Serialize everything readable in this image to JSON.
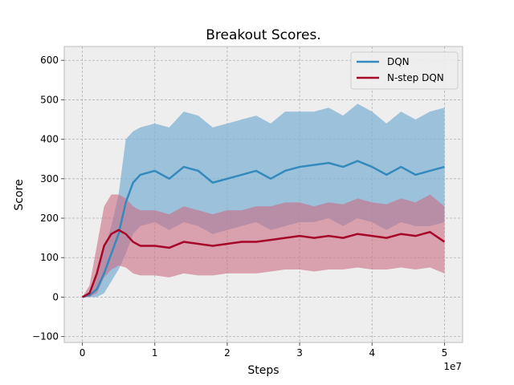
{
  "chart_data": {
    "type": "line",
    "title": "Breakout Scores.",
    "xlabel": "Steps",
    "ylabel": "Score",
    "x_offset_label": "1e7",
    "xlim": [
      -2500000,
      52500000
    ],
    "ylim": [
      -115,
      635
    ],
    "xticks": [
      0,
      10000000,
      20000000,
      30000000,
      40000000,
      50000000
    ],
    "xtick_labels": [
      "0",
      "1",
      "2",
      "3",
      "4",
      "5"
    ],
    "yticks": [
      -100,
      0,
      100,
      200,
      300,
      400,
      500,
      600
    ],
    "ytick_labels": [
      "−100",
      "0",
      "100",
      "200",
      "300",
      "400",
      "500",
      "600"
    ],
    "grid": true,
    "legend_position": "top-right",
    "series": [
      {
        "name": "DQN",
        "color": "#348ABD",
        "band_color": "#7FB1D4",
        "x": [
          0,
          1000000,
          2000000,
          3000000,
          4000000,
          5000000,
          6000000,
          7000000,
          8000000,
          10000000,
          12000000,
          14000000,
          16000000,
          18000000,
          20000000,
          22000000,
          24000000,
          26000000,
          28000000,
          30000000,
          32000000,
          34000000,
          36000000,
          38000000,
          40000000,
          42000000,
          44000000,
          46000000,
          48000000,
          50000000
        ],
        "values": [
          0,
          5,
          20,
          60,
          110,
          160,
          240,
          290,
          310,
          320,
          300,
          330,
          320,
          290,
          300,
          310,
          320,
          300,
          320,
          330,
          335,
          340,
          330,
          345,
          330,
          310,
          330,
          310,
          320,
          330
        ],
        "upper": [
          0,
          15,
          60,
          120,
          180,
          260,
          400,
          420,
          430,
          440,
          430,
          470,
          460,
          430,
          440,
          450,
          460,
          440,
          470,
          470,
          470,
          480,
          460,
          490,
          470,
          440,
          470,
          450,
          470,
          480
        ],
        "lower": [
          0,
          0,
          0,
          10,
          40,
          70,
          110,
          160,
          180,
          190,
          170,
          190,
          180,
          160,
          170,
          180,
          190,
          170,
          180,
          190,
          190,
          200,
          180,
          200,
          190,
          170,
          190,
          180,
          180,
          190
        ]
      },
      {
        "name": "N-step DQN",
        "color": "#A60628",
        "band_color": "#CB6D82",
        "x": [
          0,
          1000000,
          2000000,
          3000000,
          4000000,
          5000000,
          6000000,
          7000000,
          8000000,
          10000000,
          12000000,
          14000000,
          16000000,
          18000000,
          20000000,
          22000000,
          24000000,
          26000000,
          28000000,
          30000000,
          32000000,
          34000000,
          36000000,
          38000000,
          40000000,
          42000000,
          44000000,
          46000000,
          48000000,
          50000000
        ],
        "values": [
          0,
          10,
          60,
          130,
          160,
          170,
          160,
          140,
          130,
          130,
          125,
          140,
          135,
          130,
          135,
          140,
          140,
          145,
          150,
          155,
          150,
          155,
          150,
          160,
          155,
          150,
          160,
          155,
          165,
          140
        ],
        "upper": [
          0,
          30,
          130,
          230,
          260,
          260,
          250,
          230,
          220,
          220,
          210,
          230,
          220,
          210,
          220,
          220,
          230,
          230,
          240,
          240,
          230,
          240,
          235,
          250,
          240,
          235,
          250,
          240,
          260,
          230
        ],
        "lower": [
          0,
          0,
          10,
          50,
          70,
          80,
          75,
          60,
          55,
          55,
          50,
          60,
          55,
          55,
          60,
          60,
          60,
          65,
          70,
          70,
          65,
          70,
          70,
          75,
          70,
          70,
          75,
          70,
          75,
          60
        ]
      }
    ]
  }
}
